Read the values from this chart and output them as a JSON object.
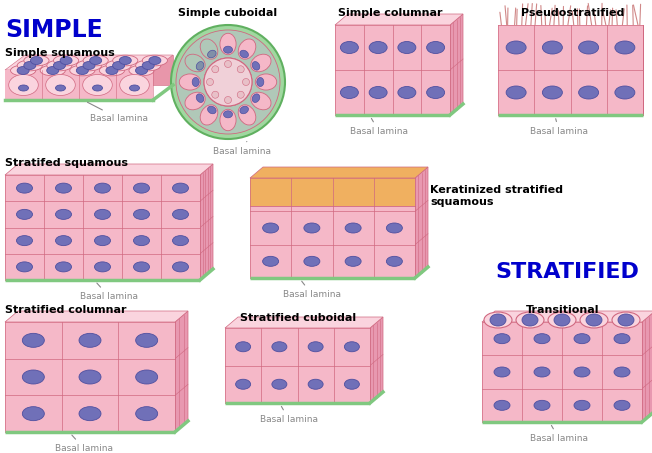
{
  "bg_color": "#ffffff",
  "title_simple": "SIMPLE",
  "title_stratified": "STRATIFIED",
  "title_color": "#0000cc",
  "label_color": "#000000",
  "basal_lamina_color": "#888888",
  "tissue_pink": "#f5b8c8",
  "tissue_pink_light": "#fad4de",
  "tissue_pink_dark": "#e896aa",
  "tissue_pink_side": "#e898b0",
  "nucleus_color": "#7070b8",
  "nucleus_outline": "#5050a0",
  "cell_outline": "#d06880",
  "basal_green": "#80c880",
  "keratinized_color": "#f0b060",
  "cilia_color": "#d08888",
  "cuboidal_green_outer": "#a0d8a0",
  "cuboidal_green_inner": "#c8e8c8",
  "cuboidal_gray": "#b0c8b8",
  "labels": {
    "simple_squamous": "Simple squamous",
    "simple_cuboidal": "Simple cuboidal",
    "simple_columnar": "Simple columnar",
    "pseudostratified": "Pseudostratified",
    "stratified_squamous": "Stratifed squamous",
    "keratinized": "Keratinized stratified\nsquamous",
    "stratified_columnar": "Stratified columnar",
    "stratified_cuboidal": "Stratified cuboidal",
    "transitional": "Transitional"
  },
  "basal_lamina_label": "Basal lamina",
  "figsize": [
    6.52,
    4.53
  ],
  "dpi": 100
}
